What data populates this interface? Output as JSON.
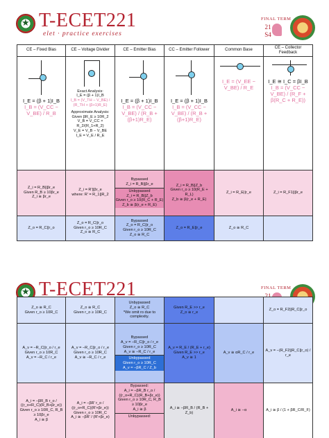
{
  "header": {
    "title": "T-ECET221",
    "subtitle": "elet · practice exercises",
    "final_term": "FINAL TERM",
    "term_code": "21 S4"
  },
  "colors": {
    "accent": "#b3222f",
    "pink": "#f2b6cf",
    "blue": "#b4c8f5"
  },
  "slide1": {
    "columns": [
      "CE – Fixed Bias",
      "CE – Voltage Divider",
      "CE – Emitter Bias",
      "CC – Emitter Follower",
      "Common Base",
      "CE – Collector Feedback"
    ],
    "row_bias": {
      "fixed": [
        "I_E = (β + 1)I_B",
        "I_B = (V_CC − V_BE) / R_B"
      ],
      "divider": [
        "Exact Analysis:",
        "I_E = (β + 1)I_B",
        "I_B = (V_TH − V_BE) / (R_TH + (β+1)R_E)",
        "Approximate Analysis:",
        "Given βR_E ≥ 10R_2",
        "V_B = V_CC × R_2/(R_1+R_2)",
        "V_E = V_B − V_BE",
        "I_E = V_E / R_E"
      ],
      "emitter": [
        "I_E = (β + 1)I_B",
        "I_B = (V_CC − V_BE) / (R_B + (β+1)R_E)"
      ],
      "follower": [
        "I_E = (β + 1)I_B",
        "I_B = (V_CC − V_BE) / (R_B + (β+1)R_E)"
      ],
      "base": [
        "I_E = (V_EE − V_BE) / R_E"
      ],
      "feedback": [
        "I_E ≅ I_C = βI_B",
        "I_B = (V_CC − V_BE) / (R_F + β(R_C + R_E))"
      ]
    },
    "row_zi": {
      "fixed": [
        "Z_i = R_B||βr_e",
        "Given R_B ≥ 10βr_e",
        "Z_i ≅ βr_e"
      ],
      "divider": [
        "Z_i = R'||βr_e",
        "where: R' = R_1||R_2"
      ],
      "emitter": [
        "Bypassed",
        "Z_i = R_B||βr_e",
        "Unbypassed",
        "Z_i = R_B||Z_b",
        "Given r_o ≥ 10(R_C + R_E)",
        "Z_b ≅ β(r_e + R_E)"
      ],
      "follower": [
        "Z_i = R_B||Z_b",
        "Given r_o ≥ 10(R_E + R_L)",
        "Z_b ≅ β(r_e + R_E)"
      ],
      "base": [
        "Z_i = R_E||r_e"
      ],
      "feedback": [
        "Z_i = R_F1||βr_e"
      ]
    },
    "row_zo": {
      "fixed": [
        "Z_o = R_C||r_o"
      ],
      "divider": [
        "Z_o = R_C||r_o",
        "Given r_o ≥ 10R_C",
        "Z_o ≅ R_C"
      ],
      "emitter": [
        "Bypassed",
        "Z_o = R_C||r_o",
        "Given r_o ≥ 10R_C",
        "Z_o ≅ R_C"
      ],
      "follower": [
        "Z_o = R_E||r_e"
      ],
      "base": [
        "Z_o ≅ R_C"
      ],
      "feedback": [
        ""
      ]
    }
  },
  "slide2": {
    "row_zo": {
      "fixed": [
        "Z_o ≅ R_C",
        "Given r_o ≥ 10R_C"
      ],
      "divider": [
        "Z_o ≅ R_C",
        "Given r_o ≥ 10R_C"
      ],
      "emitter": [
        "Unbypassed",
        "Z_o ≅ R_C",
        "*We omit ro due to complexity."
      ],
      "follower": [
        "Given R_E >> r_e",
        "Z_o ≅ r_e"
      ],
      "base": [
        ""
      ],
      "feedback": [
        "Z_o = R_F2||R_C||r_o"
      ]
    },
    "row_av": {
      "fixed": [
        "A_v = −R_C||r_o / r_e",
        "Given r_o ≥ 10R_C",
        "A_v = −R_C / r_e"
      ],
      "divider": [
        "A_v = −R_C||r_o / r_e",
        "Given r_o ≥ 10R_C",
        "A_v ≅ −R_C / r_e"
      ],
      "emitter": [
        "Bypassed",
        "A_v = −R_C||r_o / r_e",
        "Given r_o ≥ 10R_C",
        "A_v ≅ −R_C / r_e",
        "Unbypassed",
        "Given r_o ≥ 10R_C",
        "A_v = −βR_C / Z_b"
      ],
      "follower": [
        "A_v = R_E / (R_E + r_e)",
        "Given R_E >> r_e",
        "A_v ≅ 1"
      ],
      "base": [
        "A_v ≅ αR_C / r_e"
      ],
      "feedback": [
        "A_v = −(R_F2||R_C||r_o) / r_e"
      ]
    },
    "row_ai": {
      "fixed": [
        "A_i = −βR_B r_o / ((r_o+R_C)(R_B+βr_e))",
        "Given r_o ≥ 10R_C, R_B ≥ 10βr_e",
        "A_i ≅ β"
      ],
      "divider": [
        "A_i = −βR' r_o / ((r_o+R_C)(R'+βr_e))",
        "Given r_o ≥ 10R_C",
        "A_i ≅ −βR' / (R'+βr_e)"
      ],
      "emitter": [
        "Bypassed:",
        "A_i = −βR_B r_o / ((r_o+R_C)(R_B+βr_e))",
        "Given r_o ≥ 10R_C, R_B ≥ 10βr_e",
        "A_i ≅ β",
        "Unbypassed:"
      ],
      "follower": [
        "A_i ≅ −βR_B / (R_B + Z_b)"
      ],
      "base": [
        "A_i ≅ −α"
      ],
      "feedback": [
        "A_i ≅ β / (1 + βR_C/R_F)"
      ]
    }
  }
}
